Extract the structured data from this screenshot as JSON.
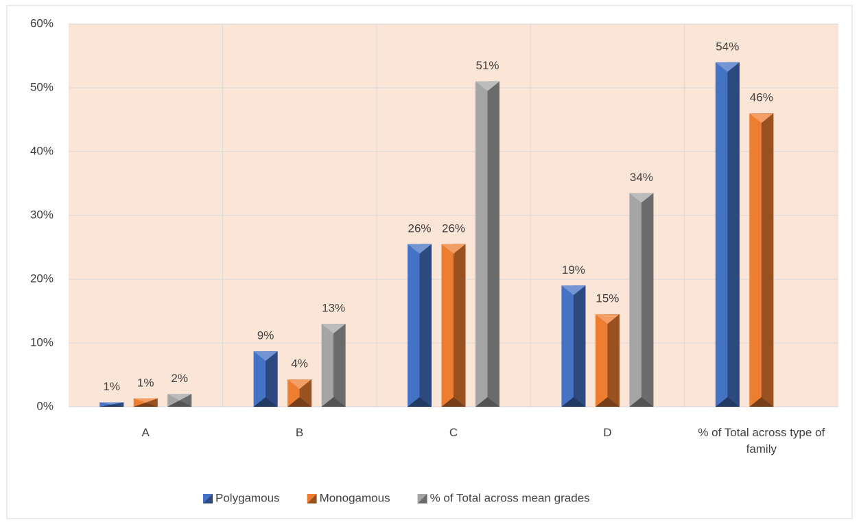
{
  "chart_data": {
    "type": "bar",
    "categories": [
      "A",
      "B",
      "C",
      "D",
      "% of Total across type of family"
    ],
    "series": [
      {
        "name": "Polygamous",
        "color": "#4472c4",
        "values": [
          0.7,
          8.7,
          25.5,
          19.0,
          54.0
        ],
        "value_labels": [
          "1%",
          "9%",
          "26%",
          "19%",
          "54%"
        ]
      },
      {
        "name": "Monogamous",
        "color": "#ed7d31",
        "values": [
          1.3,
          4.3,
          25.5,
          14.5,
          46.0
        ],
        "value_labels": [
          "1%",
          "4%",
          "26%",
          "15%",
          "46%"
        ]
      },
      {
        "name": "% of Total across mean grades",
        "color": "#a5a5a5",
        "values": [
          2.0,
          13.0,
          51.0,
          33.5,
          null
        ],
        "value_labels": [
          "2%",
          "13%",
          "51%",
          "34%",
          null
        ]
      }
    ],
    "ylim": [
      0,
      60
    ],
    "yticks": [
      {
        "value": 0,
        "label": "0%"
      },
      {
        "value": 10,
        "label": "10%"
      },
      {
        "value": 20,
        "label": "20%"
      },
      {
        "value": 30,
        "label": "30%"
      },
      {
        "value": 40,
        "label": "40%"
      },
      {
        "value": 50,
        "label": "50%"
      },
      {
        "value": 60,
        "label": "60%"
      }
    ],
    "grid": true,
    "plot_background": "#fbe5d6",
    "legend": "bottom"
  }
}
